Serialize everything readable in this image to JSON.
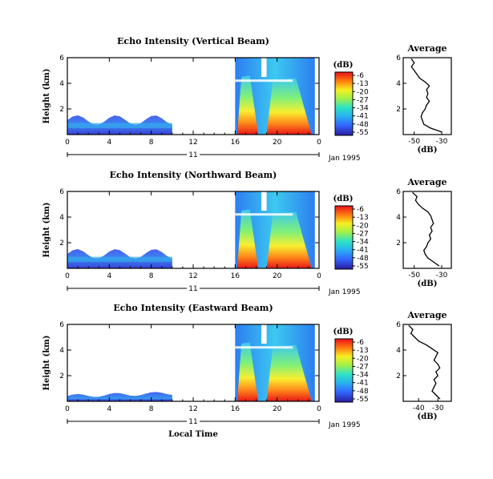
{
  "chart_data": [
    {
      "type": "heatmap",
      "title": "Echo Intensity (Vertical Beam)",
      "ylabel": "Height (km)",
      "x_ticks": [
        "0",
        "4",
        "8",
        "12",
        "16",
        "20",
        "0"
      ],
      "date_labels": {
        "day": "11",
        "month_year": "Jan 1995"
      },
      "y_ticks": [
        "2",
        "4",
        "6"
      ],
      "ylim": [
        0,
        6
      ],
      "xlim": [
        0,
        24
      ],
      "colorbar": {
        "unit": "(dB)",
        "ticks": [
          "-6",
          "-13",
          "-20",
          "-27",
          "-34",
          "-41",
          "-48",
          "-55"
        ]
      },
      "profile": {
        "title": "Average",
        "xlabel": "(dB)",
        "x_ticks": [
          "-50",
          "-30"
        ],
        "y_ticks": [
          "2",
          "4",
          "6"
        ],
        "heights": [
          0.2,
          0.5,
          0.8,
          1.1,
          1.4,
          1.7,
          2.0,
          2.3,
          2.6,
          2.9,
          3.2,
          3.5,
          3.8,
          4.1,
          4.4,
          4.7,
          5.0,
          5.3,
          5.6,
          5.9
        ],
        "values": [
          -30,
          -38,
          -43,
          -44,
          -45,
          -44,
          -42,
          -41,
          -39,
          -41,
          -40,
          -41,
          -39,
          -42,
          -46,
          -48,
          -50,
          -52,
          -50,
          -52
        ]
      }
    },
    {
      "type": "heatmap",
      "title": "Echo Intensity (Northward Beam)",
      "ylabel": "Height (km)",
      "x_ticks": [
        "0",
        "4",
        "8",
        "12",
        "16",
        "20",
        "0"
      ],
      "date_labels": {
        "day": "11",
        "month_year": "Jan 1995"
      },
      "y_ticks": [
        "2",
        "4",
        "6"
      ],
      "ylim": [
        0,
        6
      ],
      "xlim": [
        0,
        24
      ],
      "colorbar": {
        "unit": "(dB)",
        "ticks": [
          "-6",
          "-13",
          "-20",
          "-27",
          "-34",
          "-41",
          "-48",
          "-55"
        ]
      },
      "profile": {
        "title": "Average",
        "xlabel": "(dB)",
        "x_ticks": [
          "-50",
          "-30"
        ],
        "y_ticks": [
          "2",
          "4",
          "6"
        ],
        "heights": [
          0.2,
          0.5,
          0.8,
          1.1,
          1.4,
          1.7,
          2.0,
          2.3,
          2.6,
          2.9,
          3.2,
          3.5,
          3.8,
          4.1,
          4.4,
          4.7,
          5.0,
          5.3,
          5.6,
          5.9
        ],
        "values": [
          -32,
          -36,
          -40,
          -42,
          -43,
          -41,
          -40,
          -38,
          -39,
          -37,
          -38,
          -36,
          -37,
          -38,
          -40,
          -44,
          -47,
          -49,
          -48,
          -51
        ]
      }
    },
    {
      "type": "heatmap",
      "title": "Echo Intensity (Eastward Beam)",
      "ylabel": "Height (km)",
      "x_ticks": [
        "0",
        "4",
        "8",
        "12",
        "16",
        "20",
        "0"
      ],
      "date_labels": {
        "day": "11",
        "month_year": "Jan 1995"
      },
      "xlabel": "Local Time",
      "y_ticks": [
        "2",
        "4",
        "6"
      ],
      "ylim": [
        0,
        6
      ],
      "xlim": [
        0,
        24
      ],
      "colorbar": {
        "unit": "(dB)",
        "ticks": [
          "-6",
          "-13",
          "-20",
          "-27",
          "-34",
          "-41",
          "-48",
          "-55"
        ]
      },
      "profile": {
        "title": "Average",
        "xlabel": "(dB)",
        "x_ticks": [
          "-40",
          "-30"
        ],
        "y_ticks": [
          "2",
          "4",
          "6"
        ],
        "heights": [
          0.2,
          0.5,
          0.8,
          1.1,
          1.4,
          1.7,
          2.0,
          2.3,
          2.6,
          2.9,
          3.2,
          3.5,
          3.8,
          4.1,
          4.4,
          4.7,
          5.0,
          5.3,
          5.6,
          5.9
        ],
        "values": [
          -29,
          -31,
          -33,
          -32,
          -31,
          -32,
          -30,
          -31,
          -29,
          -30,
          -32,
          -31,
          -30,
          -33,
          -36,
          -40,
          -42,
          -44,
          -43,
          -45
        ]
      }
    }
  ]
}
